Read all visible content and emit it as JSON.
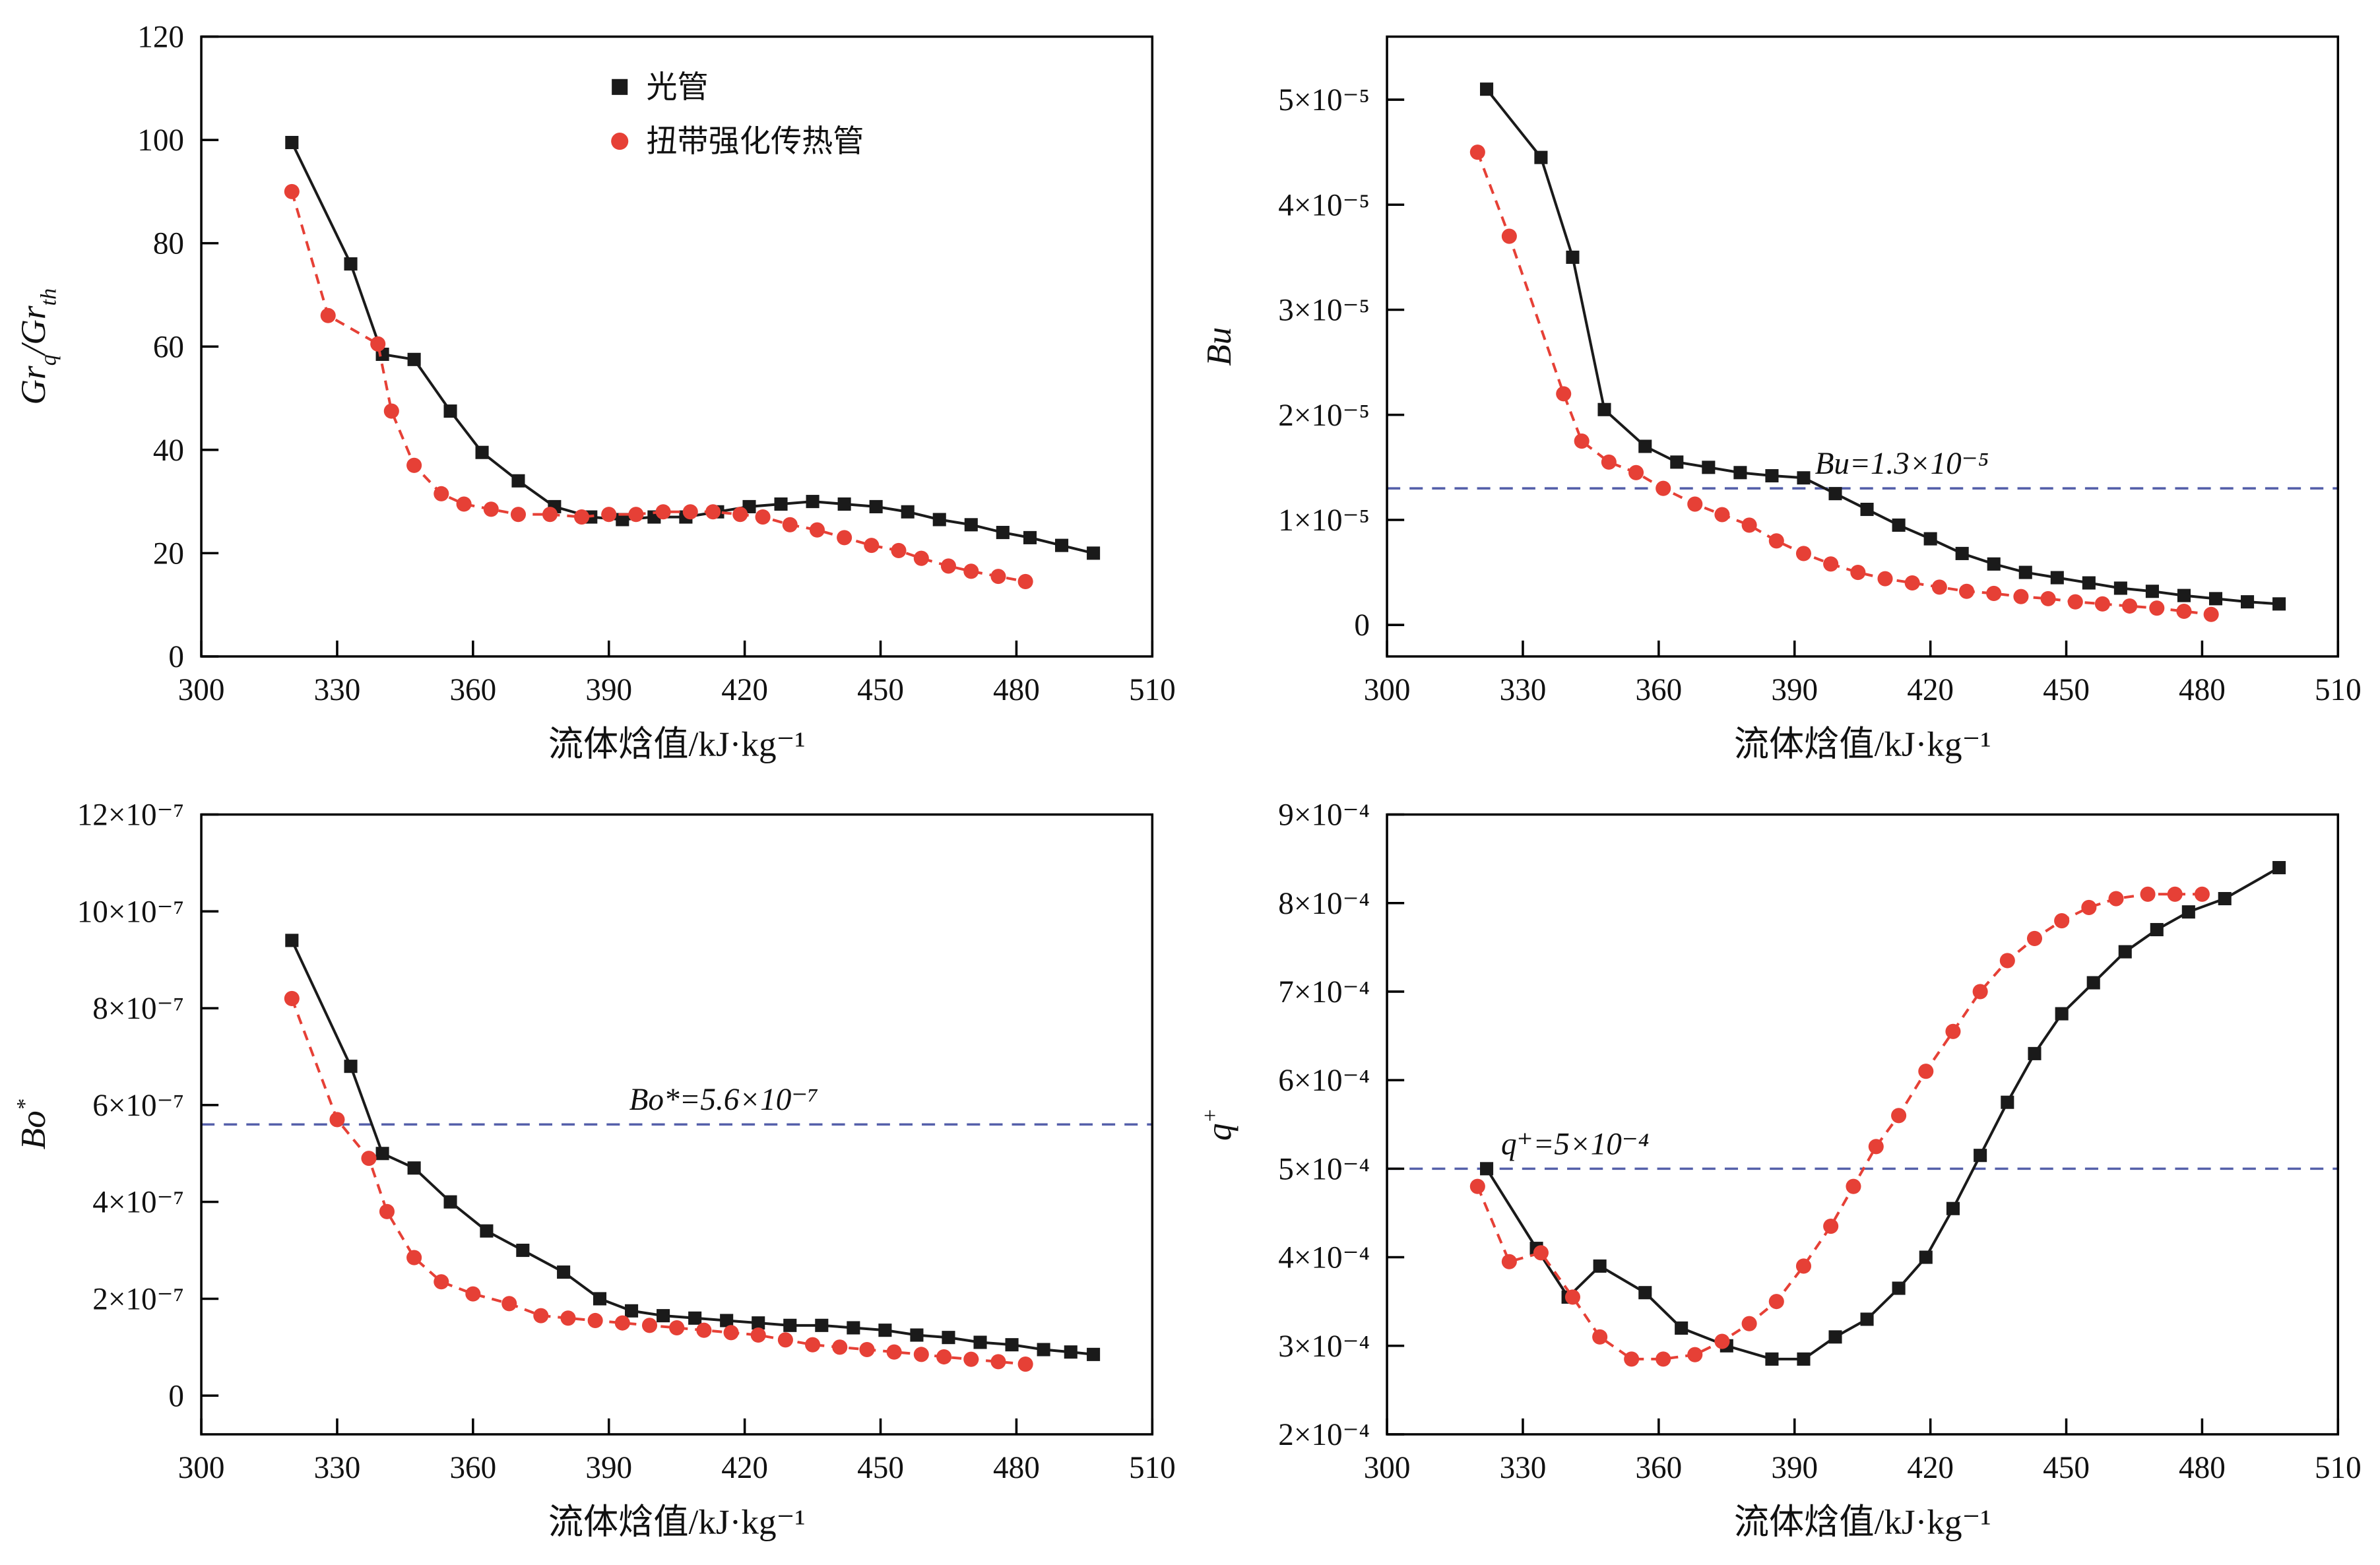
{
  "page": {
    "background": "#ffffff"
  },
  "colors": {
    "axis": "#000000",
    "smooth_tube": "#1a1a1a",
    "twisted_tape": "#e64036",
    "annotation_line": "#5560aa",
    "annotation_text": "#333f96"
  },
  "legend": {
    "items": [
      {
        "label": "光管",
        "marker": "square",
        "color": "#1a1a1a"
      },
      {
        "label": "扭带强化传热管",
        "marker": "circle",
        "color": "#e64036"
      }
    ]
  },
  "chart_data": [
    {
      "type": "line",
      "title": "",
      "xlabel": "流体焓值/kJ·kg⁻¹",
      "ylabel_text": "Grq/Grth",
      "ylabel_rich": [
        [
          "Gr",
          ""
        ],
        [
          "q",
          "sub"
        ],
        [
          "/Gr",
          ""
        ],
        [
          "th",
          "sub"
        ]
      ],
      "xlim": [
        300,
        510
      ],
      "xticks": [
        300,
        330,
        360,
        390,
        420,
        450,
        480,
        510
      ],
      "ylim": [
        0,
        120
      ],
      "y_scale": 1,
      "yticks": [
        {
          "v": 0,
          "label": "0"
        },
        {
          "v": 20,
          "label": "20"
        },
        {
          "v": 40,
          "label": "40"
        },
        {
          "v": 60,
          "label": "60"
        },
        {
          "v": 80,
          "label": "80"
        },
        {
          "v": 100,
          "label": "100"
        },
        {
          "v": 120,
          "label": "120"
        }
      ],
      "legend": true,
      "annotation": null,
      "series": [
        {
          "name": "光管",
          "marker": "square",
          "color": "#1a1a1a",
          "line": "solid",
          "x": [
            320,
            333,
            340,
            347,
            355,
            362,
            370,
            378,
            386,
            393,
            400,
            407,
            414,
            421,
            428,
            435,
            442,
            449,
            456,
            463,
            470,
            477,
            483,
            490,
            497
          ],
          "y": [
            99.5,
            76,
            58.5,
            57.5,
            47.5,
            39.5,
            34,
            29,
            27,
            26.5,
            27,
            27,
            28,
            29,
            29.5,
            30,
            29.5,
            29,
            28,
            26.5,
            25.5,
            24,
            23,
            21.5,
            20
          ]
        },
        {
          "name": "扭带强化传热管",
          "marker": "circle",
          "color": "#e64036",
          "line": "dashed",
          "x": [
            320,
            328,
            339,
            342,
            347,
            353,
            358,
            364,
            370,
            377,
            384,
            390,
            396,
            402,
            408,
            413,
            419,
            424,
            430,
            436,
            442,
            448,
            454,
            459,
            465,
            470,
            476,
            482
          ],
          "y": [
            90,
            66,
            60.5,
            47.5,
            37,
            31.5,
            29.5,
            28.5,
            27.5,
            27.5,
            27,
            27.5,
            27.5,
            28,
            28,
            28,
            27.5,
            27,
            25.5,
            24.5,
            23,
            21.5,
            20.5,
            19,
            17.5,
            16.5,
            15.5,
            14.5
          ]
        }
      ]
    },
    {
      "type": "line",
      "title": "",
      "xlabel": "流体焓值/kJ·kg⁻¹",
      "ylabel_text": "Bu",
      "ylabel_rich": [
        [
          "Bu",
          ""
        ]
      ],
      "xlim": [
        300,
        510
      ],
      "xticks": [
        300,
        330,
        360,
        390,
        420,
        450,
        480,
        510
      ],
      "ylim": [
        -0.3,
        5.6
      ],
      "y_scale": 1e-05,
      "yticks": [
        {
          "v": 0,
          "label": "0"
        },
        {
          "v": 1,
          "label": "1×10⁻⁵"
        },
        {
          "v": 2,
          "label": "2×10⁻⁵"
        },
        {
          "v": 3,
          "label": "3×10⁻⁵"
        },
        {
          "v": 4,
          "label": "4×10⁻⁵"
        },
        {
          "v": 5,
          "label": "5×10⁻⁵"
        }
      ],
      "legend": false,
      "annotation": {
        "y": 1.3,
        "label": "Bu=1.3×10⁻⁵",
        "label_fx": 0.45
      },
      "series": [
        {
          "name": "光管",
          "marker": "square",
          "color": "#1a1a1a",
          "line": "solid",
          "x": [
            322,
            334,
            341,
            348,
            357,
            364,
            371,
            378,
            385,
            392,
            399,
            406,
            413,
            420,
            427,
            434,
            441,
            448,
            455,
            462,
            469,
            476,
            483,
            490,
            497
          ],
          "y": [
            5.1,
            4.45,
            3.5,
            2.05,
            1.7,
            1.55,
            1.5,
            1.45,
            1.42,
            1.4,
            1.25,
            1.1,
            0.95,
            0.82,
            0.68,
            0.58,
            0.5,
            0.45,
            0.4,
            0.35,
            0.32,
            0.28,
            0.25,
            0.22,
            0.2
          ]
        },
        {
          "name": "扭带强化传热管",
          "marker": "circle",
          "color": "#e64036",
          "line": "dashed",
          "x": [
            320,
            327,
            339,
            343,
            349,
            355,
            361,
            368,
            374,
            380,
            386,
            392,
            398,
            404,
            410,
            416,
            422,
            428,
            434,
            440,
            446,
            452,
            458,
            464,
            470,
            476,
            482
          ],
          "y": [
            4.5,
            3.7,
            2.2,
            1.75,
            1.55,
            1.45,
            1.3,
            1.15,
            1.05,
            0.95,
            0.8,
            0.68,
            0.58,
            0.5,
            0.44,
            0.4,
            0.36,
            0.32,
            0.3,
            0.27,
            0.25,
            0.22,
            0.2,
            0.18,
            0.16,
            0.13,
            0.1
          ]
        }
      ]
    },
    {
      "type": "line",
      "title": "",
      "xlabel": "流体焓值/kJ·kg⁻¹",
      "ylabel_text": "Bo*",
      "ylabel_rich": [
        [
          "Bo",
          ""
        ],
        [
          "*",
          "sup"
        ]
      ],
      "xlim": [
        300,
        510
      ],
      "xticks": [
        300,
        330,
        360,
        390,
        420,
        450,
        480,
        510
      ],
      "ylim": [
        -0.8,
        12
      ],
      "y_scale": 1e-07,
      "yticks": [
        {
          "v": 0,
          "label": "0"
        },
        {
          "v": 2,
          "label": "2×10⁻⁷"
        },
        {
          "v": 4,
          "label": "4×10⁻⁷"
        },
        {
          "v": 6,
          "label": "6×10⁻⁷"
        },
        {
          "v": 8,
          "label": "8×10⁻⁷"
        },
        {
          "v": 10,
          "label": "10×10⁻⁷"
        },
        {
          "v": 12,
          "label": "12×10⁻⁷"
        }
      ],
      "legend": false,
      "annotation": {
        "y": 5.6,
        "label": "Bo*=5.6×10⁻⁷",
        "label_fx": 0.45
      },
      "series": [
        {
          "name": "光管",
          "marker": "square",
          "color": "#1a1a1a",
          "line": "solid",
          "x": [
            320,
            333,
            340,
            347,
            355,
            363,
            371,
            380,
            388,
            395,
            402,
            409,
            416,
            423,
            430,
            437,
            444,
            451,
            458,
            465,
            472,
            479,
            486,
            492,
            497
          ],
          "y": [
            9.4,
            6.8,
            5.0,
            4.7,
            4.0,
            3.4,
            3.0,
            2.55,
            2.0,
            1.75,
            1.65,
            1.6,
            1.55,
            1.5,
            1.45,
            1.45,
            1.4,
            1.35,
            1.25,
            1.2,
            1.1,
            1.05,
            0.95,
            0.9,
            0.85
          ]
        },
        {
          "name": "扭带强化传热管",
          "marker": "circle",
          "color": "#e64036",
          "line": "dashed",
          "x": [
            320,
            330,
            337,
            341,
            347,
            353,
            360,
            368,
            375,
            381,
            387,
            393,
            399,
            405,
            411,
            417,
            423,
            429,
            435,
            441,
            447,
            453,
            459,
            464,
            470,
            476,
            482
          ],
          "y": [
            8.2,
            5.7,
            4.9,
            3.8,
            2.85,
            2.35,
            2.1,
            1.9,
            1.65,
            1.6,
            1.55,
            1.5,
            1.45,
            1.4,
            1.35,
            1.3,
            1.25,
            1.15,
            1.05,
            1.0,
            0.95,
            0.9,
            0.85,
            0.8,
            0.75,
            0.7,
            0.65
          ]
        }
      ]
    },
    {
      "type": "line",
      "title": "",
      "xlabel": "流体焓值/kJ·kg⁻¹",
      "ylabel_text": "q⁺",
      "ylabel_rich": [
        [
          "q",
          ""
        ],
        [
          "+",
          "sup"
        ]
      ],
      "xlim": [
        300,
        510
      ],
      "xticks": [
        300,
        330,
        360,
        390,
        420,
        450,
        480,
        510
      ],
      "ylim": [
        2,
        9
      ],
      "y_scale": 0.0001,
      "yticks": [
        {
          "v": 2,
          "label": "2×10⁻⁴"
        },
        {
          "v": 3,
          "label": "3×10⁻⁴"
        },
        {
          "v": 4,
          "label": "4×10⁻⁴"
        },
        {
          "v": 5,
          "label": "5×10⁻⁴"
        },
        {
          "v": 6,
          "label": "6×10⁻⁴"
        },
        {
          "v": 7,
          "label": "7×10⁻⁴"
        },
        {
          "v": 8,
          "label": "8×10⁻⁴"
        },
        {
          "v": 9,
          "label": "9×10⁻⁴"
        }
      ],
      "legend": false,
      "annotation": {
        "y": 5,
        "label": "q⁺=5×10⁻⁴",
        "label_fx": 0.12
      },
      "series": [
        {
          "name": "光管",
          "marker": "square",
          "color": "#1a1a1a",
          "line": "solid",
          "x": [
            322,
            333,
            340,
            347,
            357,
            365,
            375,
            385,
            392,
            399,
            406,
            413,
            419,
            425,
            431,
            437,
            443,
            449,
            456,
            463,
            470,
            477,
            485,
            497
          ],
          "y": [
            5.0,
            4.1,
            3.55,
            3.9,
            3.6,
            3.2,
            3.0,
            2.85,
            2.85,
            3.1,
            3.3,
            3.65,
            4.0,
            4.55,
            5.15,
            5.75,
            6.3,
            6.75,
            7.1,
            7.45,
            7.7,
            7.9,
            8.05,
            8.4
          ]
        },
        {
          "name": "扭带强化传热管",
          "marker": "circle",
          "color": "#e64036",
          "line": "dashed",
          "x": [
            320,
            327,
            334,
            341,
            347,
            354,
            361,
            368,
            374,
            380,
            386,
            392,
            398,
            403,
            408,
            413,
            419,
            425,
            431,
            437,
            443,
            449,
            455,
            461,
            468,
            474,
            480
          ],
          "y": [
            4.8,
            3.95,
            4.05,
            3.55,
            3.1,
            2.85,
            2.85,
            2.9,
            3.05,
            3.25,
            3.5,
            3.9,
            4.35,
            4.8,
            5.25,
            5.6,
            6.1,
            6.55,
            7.0,
            7.35,
            7.6,
            7.8,
            7.95,
            8.05,
            8.1,
            8.1,
            8.1
          ]
        }
      ]
    }
  ]
}
